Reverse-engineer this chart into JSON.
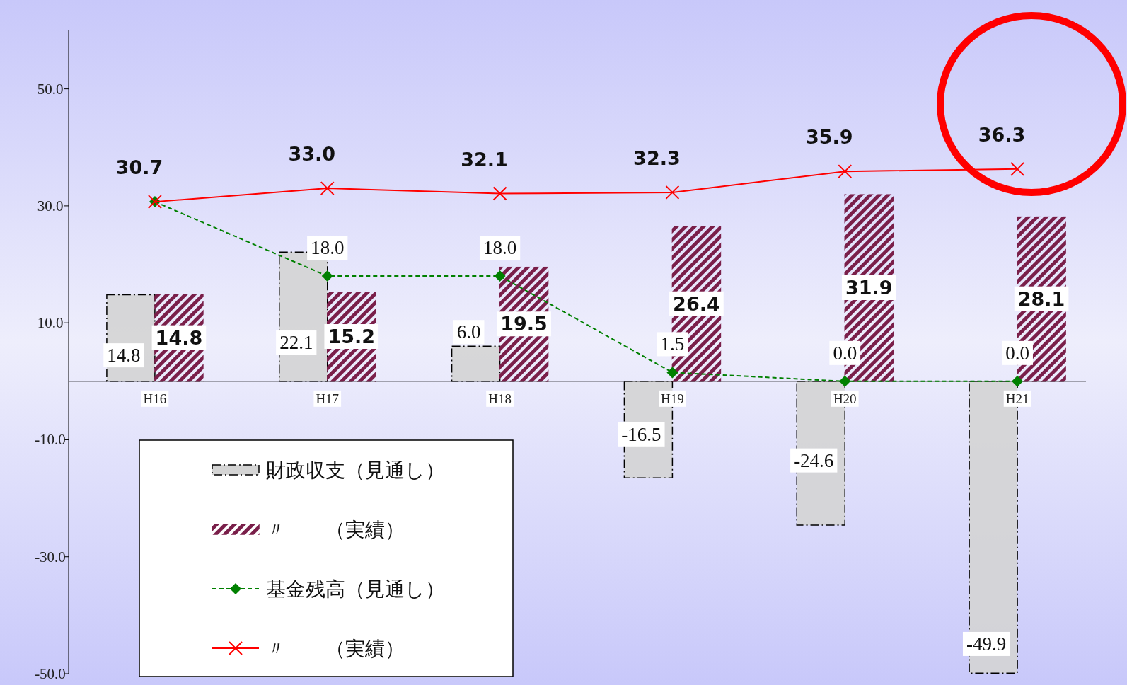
{
  "chart_data": {
    "type": "bar",
    "categories": [
      "H16",
      "H17",
      "H18",
      "H19",
      "H20",
      "H21"
    ],
    "ylim": [
      -50,
      60
    ],
    "yticks": [
      {
        "value": 50,
        "label": "50.0"
      },
      {
        "value": 30,
        "label": "30.0"
      },
      {
        "value": 10,
        "label": "10.0"
      },
      {
        "value": -10,
        "label": "-10.0"
      },
      {
        "value": -30,
        "label": "-30.0"
      },
      {
        "value": -50,
        "label": "-50.0"
      }
    ],
    "grid": false,
    "legend": "bottom left",
    "series": [
      {
        "name": "財政収支（見通し）",
        "color": "#d4d4d4",
        "values": [
          14.8,
          22.1,
          6.0,
          -16.5,
          -24.6,
          -49.9
        ],
        "value_labels": [
          "14.8",
          "22.1",
          "6.0",
          "-16.5",
          "-24.6",
          "-49.9"
        ]
      },
      {
        "name": "〃　　（実績）",
        "color": "#7a1f4a",
        "values": [
          14.8,
          15.2,
          19.5,
          26.4,
          31.9,
          28.1
        ],
        "value_labels": [
          "14.8",
          "15.2",
          "19.5",
          "26.4",
          "31.9",
          "28.1"
        ]
      },
      {
        "name": "基金残高（見通し）",
        "type": "line",
        "color": "#008000",
        "line_style": "dashed",
        "marker": "diamond",
        "values": [
          30.7,
          18.0,
          18.0,
          1.5,
          0.0,
          0.0
        ],
        "value_labels": [
          null,
          "18.0",
          "18.0",
          "1.5",
          "0.0",
          "0.0"
        ]
      },
      {
        "name": "〃　　（実績）",
        "type": "line",
        "color": "#ff0000",
        "line_style": "solid",
        "marker": "cross",
        "values": [
          30.7,
          33.0,
          32.1,
          32.3,
          35.9,
          36.3
        ],
        "value_labels": [
          "30.7",
          "33.0",
          "32.1",
          "32.3",
          "35.9",
          "36.3"
        ]
      }
    ]
  }
}
